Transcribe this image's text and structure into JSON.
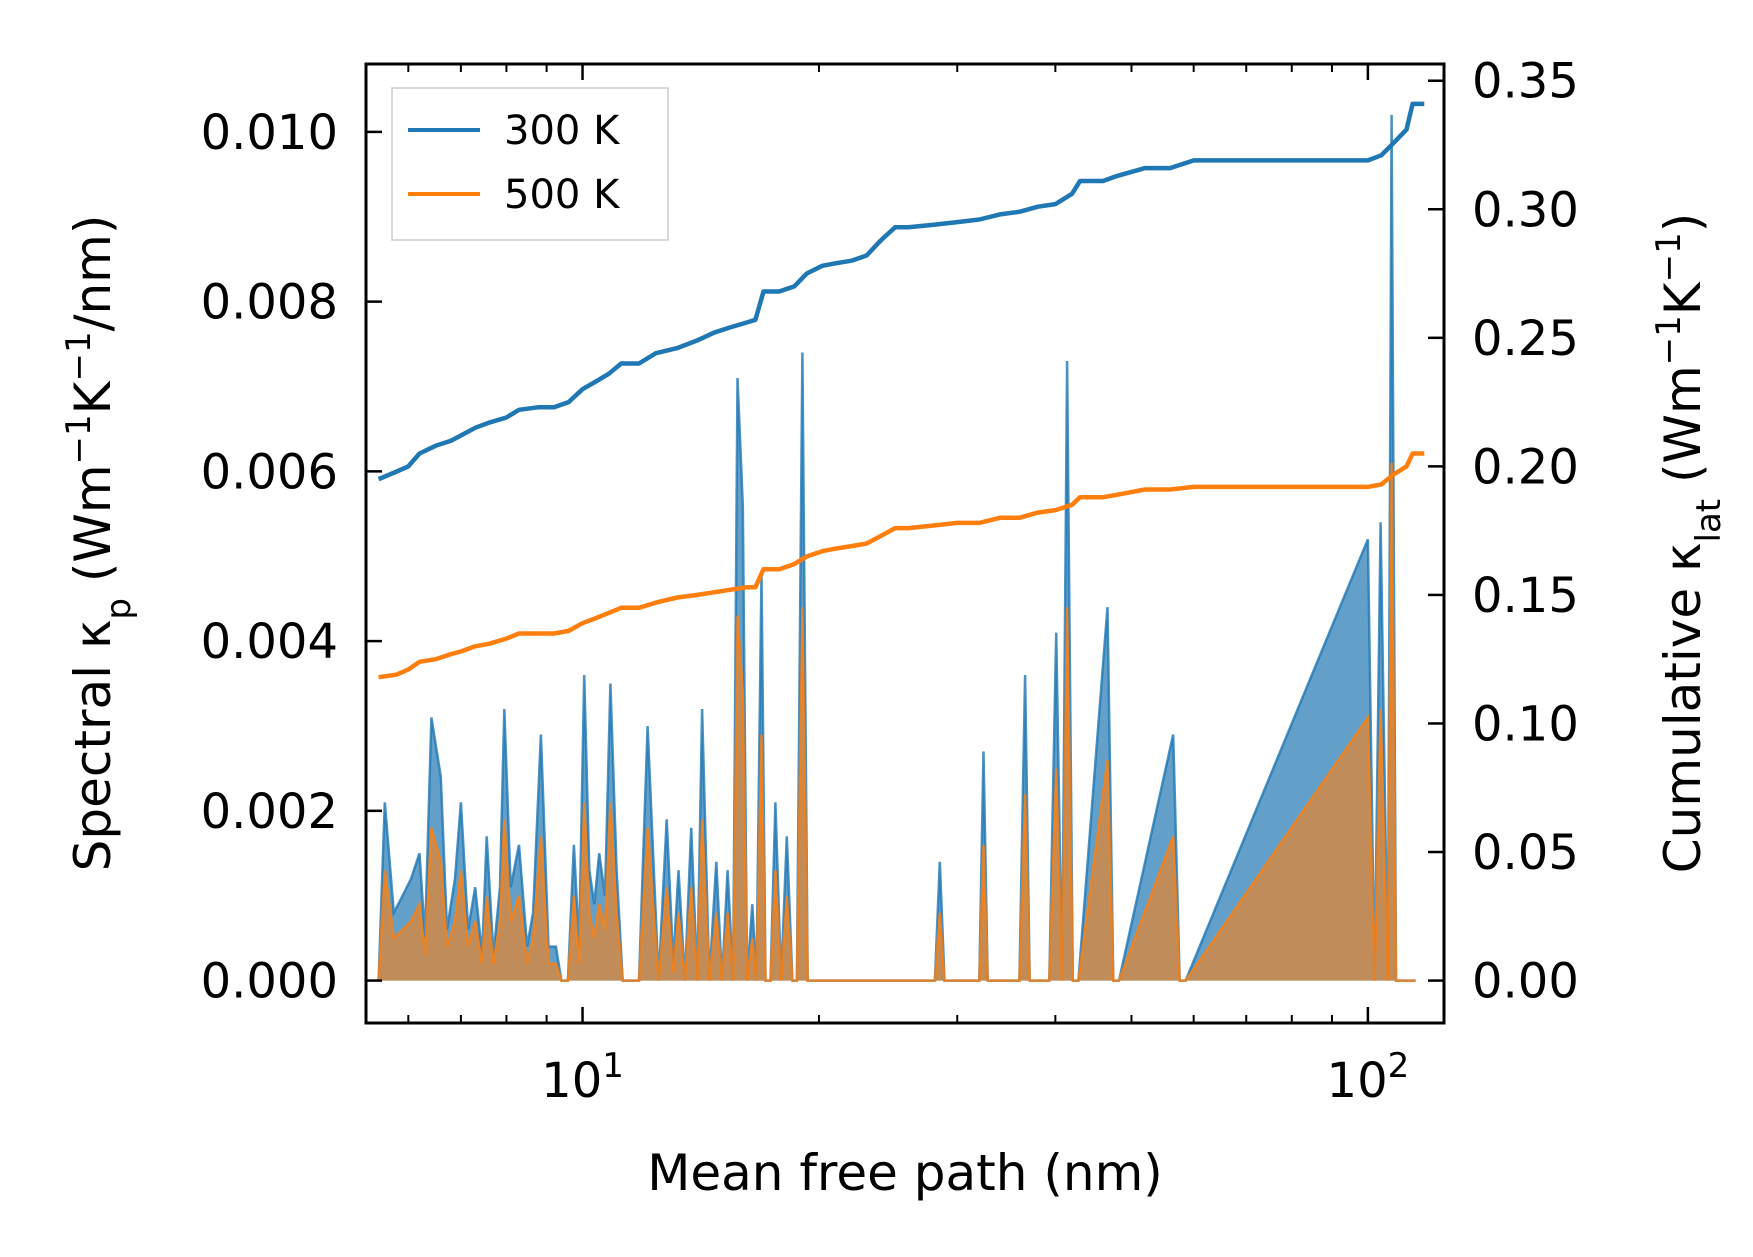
{
  "chart_data": {
    "type": "line",
    "xscale": "log",
    "xlim": [
      5.3,
      125
    ],
    "xlabel": "Mean free path (nm)",
    "x_ticks": [
      {
        "value": 10,
        "base": "10",
        "exp": "1"
      },
      {
        "value": 100,
        "base": "10",
        "exp": "2"
      }
    ],
    "left_axis": {
      "label_pre": "Spectral κ",
      "label_sub": "p",
      "label_post": " (Wm",
      "sup1": "−1",
      "mid": "K",
      "sup2": "−1",
      "tail": "/nm)",
      "ylim": [
        -0.0005,
        0.0108
      ],
      "ticks": [
        0.0,
        0.002,
        0.004,
        0.006,
        0.008,
        0.01
      ],
      "tick_labels": [
        "0.000",
        "0.002",
        "0.004",
        "0.006",
        "0.008",
        "0.010"
      ]
    },
    "right_axis": {
      "label_pre": "Cumulative κ",
      "label_sub": "lat",
      "label_post": " (Wm",
      "sup1": "−1",
      "mid": "K",
      "sup2": "−1",
      "tail": ")",
      "ylim": [
        -0.0165,
        0.3565
      ],
      "ticks": [
        0.0,
        0.05,
        0.1,
        0.15,
        0.2,
        0.25,
        0.3,
        0.35
      ],
      "tick_labels": [
        "0.00",
        "0.05",
        "0.10",
        "0.15",
        "0.20",
        "0.25",
        "0.30",
        "0.35"
      ]
    },
    "legend": {
      "position": "top-left",
      "entries": [
        {
          "name": "300 K",
          "color": "#1f77b4"
        },
        {
          "name": "500 K",
          "color": "#ff7f0e"
        }
      ]
    },
    "series": [
      {
        "name": "300 K",
        "axis": "right",
        "kind": "cumulative",
        "color": "#1f77b4",
        "x": [
          5.5,
          5.8,
          6.0,
          6.2,
          6.5,
          6.8,
          7.0,
          7.3,
          7.6,
          8.0,
          8.3,
          8.8,
          9.2,
          9.6,
          10.0,
          10.4,
          10.8,
          11.2,
          11.8,
          12.4,
          13.2,
          14.0,
          14.7,
          15.4,
          16.2,
          16.6,
          17.0,
          17.8,
          18.6,
          19.3,
          20.2,
          21.0,
          22.0,
          23.0,
          24.0,
          25.0,
          26.0,
          28.0,
          30.0,
          32.0,
          34.0,
          36.0,
          38.0,
          40.0,
          42.0,
          43.0,
          46.0,
          48.0,
          52.0,
          56.0,
          60.0,
          70.0,
          80.0,
          90.0,
          100.0,
          104.0,
          108.0,
          112.0,
          114.0,
          118.0
        ],
        "y": [
          0.195,
          0.198,
          0.2,
          0.205,
          0.208,
          0.21,
          0.212,
          0.215,
          0.217,
          0.219,
          0.222,
          0.223,
          0.223,
          0.225,
          0.23,
          0.233,
          0.236,
          0.24,
          0.24,
          0.244,
          0.246,
          0.249,
          0.252,
          0.254,
          0.256,
          0.257,
          0.268,
          0.268,
          0.27,
          0.275,
          0.278,
          0.279,
          0.28,
          0.282,
          0.288,
          0.293,
          0.293,
          0.294,
          0.295,
          0.296,
          0.298,
          0.299,
          0.301,
          0.302,
          0.306,
          0.311,
          0.311,
          0.313,
          0.316,
          0.316,
          0.319,
          0.319,
          0.319,
          0.319,
          0.319,
          0.321,
          0.326,
          0.331,
          0.341,
          0.341
        ]
      },
      {
        "name": "500 K",
        "axis": "right",
        "kind": "cumulative",
        "color": "#ff7f0e",
        "x": [
          5.5,
          5.8,
          6.0,
          6.2,
          6.5,
          6.8,
          7.0,
          7.3,
          7.6,
          8.0,
          8.3,
          8.8,
          9.2,
          9.6,
          10.0,
          10.4,
          10.8,
          11.2,
          11.8,
          12.4,
          13.2,
          14.0,
          14.7,
          15.4,
          16.2,
          16.6,
          17.0,
          17.8,
          18.6,
          19.3,
          20.2,
          21.0,
          22.0,
          23.0,
          24.0,
          25.0,
          26.0,
          28.0,
          30.0,
          32.0,
          34.0,
          36.0,
          38.0,
          40.0,
          42.0,
          43.0,
          46.0,
          48.0,
          52.0,
          56.0,
          60.0,
          70.0,
          80.0,
          90.0,
          100.0,
          104.0,
          108.0,
          112.0,
          114.0,
          118.0
        ],
        "y": [
          0.118,
          0.119,
          0.121,
          0.124,
          0.125,
          0.127,
          0.128,
          0.13,
          0.131,
          0.133,
          0.135,
          0.135,
          0.135,
          0.136,
          0.139,
          0.141,
          0.143,
          0.145,
          0.145,
          0.147,
          0.149,
          0.15,
          0.151,
          0.152,
          0.153,
          0.153,
          0.16,
          0.16,
          0.162,
          0.165,
          0.167,
          0.168,
          0.169,
          0.17,
          0.173,
          0.176,
          0.176,
          0.177,
          0.178,
          0.178,
          0.18,
          0.18,
          0.182,
          0.183,
          0.185,
          0.188,
          0.188,
          0.189,
          0.191,
          0.191,
          0.192,
          0.192,
          0.192,
          0.192,
          0.192,
          0.193,
          0.197,
          0.2,
          0.205,
          0.205
        ]
      },
      {
        "name": "300 K spectral",
        "axis": "left",
        "kind": "spectral",
        "color": "#1f77b4",
        "x": [
          5.5,
          5.6,
          5.75,
          5.9,
          6.05,
          6.2,
          6.3,
          6.42,
          6.6,
          6.72,
          6.88,
          7.0,
          7.15,
          7.3,
          7.45,
          7.55,
          7.7,
          7.85,
          7.95,
          8.1,
          8.3,
          8.5,
          8.65,
          8.85,
          9.05,
          9.25,
          9.4,
          9.58,
          9.75,
          9.9,
          10.05,
          10.2,
          10.35,
          10.5,
          10.68,
          10.85,
          11.05,
          11.25,
          11.5,
          11.8,
          12.1,
          12.5,
          12.8,
          13.05,
          13.25,
          13.5,
          13.75,
          14.0,
          14.2,
          14.5,
          14.8,
          15.05,
          15.3,
          15.55,
          15.75,
          16.0,
          16.2,
          16.45,
          16.65,
          16.9,
          17.1,
          17.35,
          17.6,
          17.9,
          18.2,
          18.5,
          18.75,
          19.05,
          19.35,
          19.6,
          19.85,
          20.15,
          20.4,
          20.7,
          20.95,
          21.25,
          21.55,
          21.85,
          22.1,
          22.4,
          22.75,
          23.0,
          23.3,
          23.6,
          23.85,
          24.15,
          24.45,
          24.8,
          28.1,
          28.5,
          28.9,
          32.0,
          32.4,
          32.8,
          36.0,
          36.6,
          37.1,
          39.3,
          40.1,
          40.8,
          41.4,
          42.1,
          42.8,
          46.6,
          47.4,
          48.2,
          56.5,
          57.6,
          58.6,
          100.0,
          102.0,
          103.8,
          106.0,
          107.2,
          108.6,
          110.0,
          111.2,
          112.5,
          113.8,
          115.0
        ],
        "y": [
          0.0,
          0.0021,
          0.0008,
          0.001,
          0.0012,
          0.0015,
          0.0005,
          0.0031,
          0.0024,
          0.0006,
          0.0012,
          0.0021,
          0.0006,
          0.0011,
          0.0003,
          0.0017,
          0.0003,
          0.0011,
          0.0032,
          0.0011,
          0.0016,
          0.0004,
          0.0008,
          0.0029,
          0.0004,
          0.0004,
          0.0,
          0.0,
          0.0016,
          0.0004,
          0.0036,
          0.0013,
          0.0009,
          0.0015,
          0.001,
          0.0035,
          0.0013,
          0.0,
          0.0,
          0.0,
          0.003,
          0.0,
          0.0019,
          0.0002,
          0.0013,
          0.0,
          0.0018,
          0.0,
          0.0032,
          0.0,
          0.0014,
          0.0,
          0.0013,
          0.0,
          0.0071,
          0.0056,
          0.0,
          0.0009,
          0.0,
          0.0048,
          0.0,
          0.0,
          0.0021,
          0.0,
          0.0017,
          0.0,
          0.0,
          0.0074,
          0.0,
          0.0,
          0.0,
          0.0,
          0.0,
          0.0,
          0.0,
          0.0,
          0.0,
          0.0,
          0.0,
          0.0,
          0.0,
          0.0,
          0.0,
          0.0,
          0.0,
          0.0,
          0.0,
          0.0,
          0.0,
          0.0014,
          0.0,
          0.0,
          0.0027,
          0.0,
          0.0,
          0.0036,
          0.0,
          0.0,
          0.0041,
          0.0,
          0.0073,
          0.0,
          0.0,
          0.0044,
          0.0,
          0.0,
          0.0029,
          0.0,
          0.0,
          0.0052,
          0.0,
          0.0054,
          0.0,
          0.0102,
          0.0,
          0.0,
          0.0,
          0.0,
          0.0,
          0.0
        ]
      },
      {
        "name": "500 K spectral",
        "axis": "left",
        "kind": "spectral",
        "color": "#ff7f0e",
        "x": [
          5.5,
          5.6,
          5.75,
          5.9,
          6.05,
          6.2,
          6.3,
          6.42,
          6.6,
          6.72,
          6.88,
          7.0,
          7.15,
          7.3,
          7.45,
          7.55,
          7.7,
          7.85,
          7.95,
          8.1,
          8.3,
          8.5,
          8.65,
          8.85,
          9.05,
          9.25,
          9.4,
          9.58,
          9.75,
          9.9,
          10.05,
          10.2,
          10.35,
          10.5,
          10.68,
          10.85,
          11.05,
          11.25,
          11.5,
          11.8,
          12.1,
          12.5,
          12.8,
          13.05,
          13.25,
          13.5,
          13.75,
          14.0,
          14.2,
          14.5,
          14.8,
          15.05,
          15.3,
          15.55,
          15.75,
          16.0,
          16.2,
          16.45,
          16.65,
          16.9,
          17.1,
          17.35,
          17.6,
          17.9,
          18.2,
          18.5,
          18.75,
          19.05,
          19.35,
          19.6,
          19.85,
          20.15,
          20.4,
          20.7,
          20.95,
          21.25,
          21.55,
          21.85,
          22.1,
          22.4,
          22.75,
          23.0,
          23.3,
          23.6,
          23.85,
          24.15,
          24.45,
          24.8,
          28.1,
          28.5,
          28.9,
          32.0,
          32.4,
          32.8,
          36.0,
          36.6,
          37.1,
          39.3,
          40.1,
          40.8,
          41.4,
          42.1,
          42.8,
          46.6,
          47.4,
          48.2,
          56.5,
          57.6,
          58.6,
          100.0,
          102.0,
          103.8,
          106.0,
          107.2,
          108.6,
          110.0,
          111.2,
          112.5,
          113.8,
          115.0
        ],
        "y": [
          0.0,
          0.0013,
          0.0005,
          0.0006,
          0.0007,
          0.0009,
          0.0003,
          0.0018,
          0.0014,
          0.0004,
          0.0007,
          0.0013,
          0.0004,
          0.0007,
          0.0002,
          0.001,
          0.0002,
          0.0007,
          0.0019,
          0.0007,
          0.001,
          0.0002,
          0.0005,
          0.0017,
          0.0002,
          0.0002,
          0.0,
          0.0,
          0.001,
          0.0002,
          0.0021,
          0.0008,
          0.0005,
          0.0009,
          0.0006,
          0.0021,
          0.0008,
          0.0,
          0.0,
          0.0,
          0.0018,
          0.0,
          0.0011,
          0.0001,
          0.0008,
          0.0,
          0.0011,
          0.0,
          0.0019,
          0.0,
          0.0008,
          0.0,
          0.0008,
          0.0,
          0.0043,
          0.0034,
          0.0,
          0.0005,
          0.0,
          0.0029,
          0.0,
          0.0,
          0.0013,
          0.0,
          0.001,
          0.0,
          0.0,
          0.0044,
          0.0,
          0.0,
          0.0,
          0.0,
          0.0,
          0.0,
          0.0,
          0.0,
          0.0,
          0.0,
          0.0,
          0.0,
          0.0,
          0.0,
          0.0,
          0.0,
          0.0,
          0.0,
          0.0,
          0.0,
          0.0,
          0.0008,
          0.0,
          0.0,
          0.0016,
          0.0,
          0.0,
          0.0022,
          0.0,
          0.0,
          0.0025,
          0.0,
          0.0044,
          0.0,
          0.0,
          0.0026,
          0.0,
          0.0,
          0.0017,
          0.0,
          0.0,
          0.0031,
          0.0,
          0.0032,
          0.0,
          0.0061,
          0.0,
          0.0,
          0.0,
          0.0,
          0.0,
          0.0
        ]
      }
    ]
  }
}
